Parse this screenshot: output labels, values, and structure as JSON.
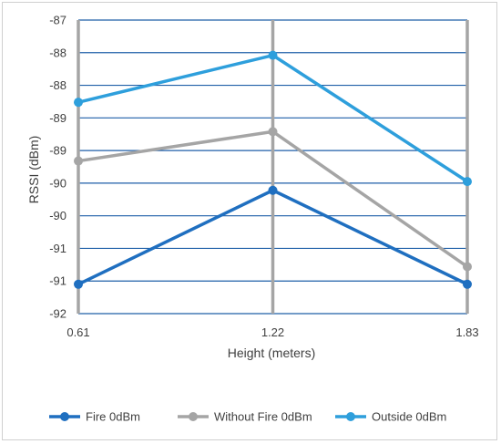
{
  "chart_data": {
    "type": "line",
    "title": "",
    "xlabel": "Height (meters)",
    "ylabel": "RSSI (dBm)",
    "categories": [
      "0.61",
      "1.22",
      "1.83"
    ],
    "y_tick_labels": [
      "-87",
      "-88",
      "-88",
      "-89",
      "-89",
      "-90",
      "-90",
      "-91",
      "-91",
      "-92"
    ],
    "ylim": [
      -92,
      -87
    ],
    "grid": "horizontal major gridlines, vertical lines at category positions",
    "legend_position": "bottom",
    "series": [
      {
        "name": "Fire 0dBm",
        "color": "#1f6fc0",
        "values": [
          -91.5,
          -89.9,
          -91.5
        ]
      },
      {
        "name": "Without Fire 0dBm",
        "color": "#a5a5a5",
        "values": [
          -89.4,
          -88.9,
          -91.2
        ]
      },
      {
        "name": "Outside 0dBm",
        "color": "#2e9fdc",
        "values": [
          -88.4,
          -87.6,
          -89.75
        ]
      }
    ],
    "gridline_color": "#1f5fa8",
    "vertical_line_color": "#a5a5a5"
  }
}
